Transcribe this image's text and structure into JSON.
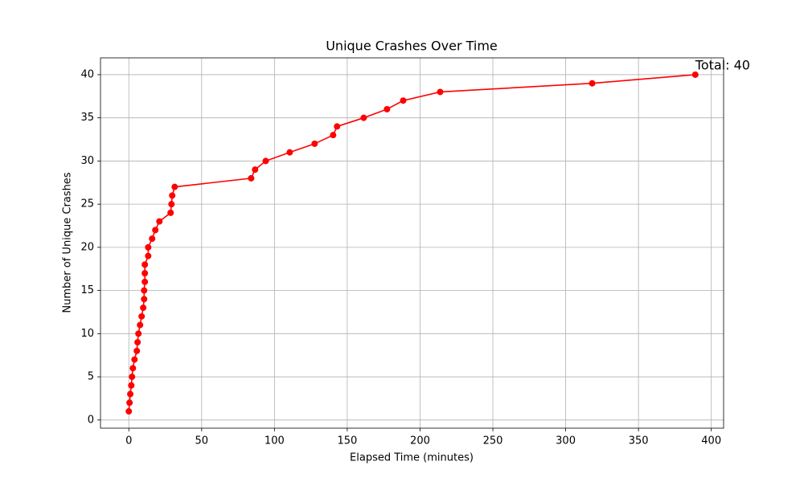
{
  "chart_data": {
    "type": "line",
    "title": "Unique Crashes Over Time",
    "x_label": "Elapsed Time (minutes)",
    "y_label": "Number of Unique Crashes",
    "x": [
      0,
      0.5,
      1,
      1.7,
      2.2,
      2.8,
      3.9,
      5.5,
      6,
      6.6,
      7.7,
      8.8,
      9.9,
      10.5,
      10.5,
      11,
      11,
      11,
      13.3,
      13.3,
      16,
      18.2,
      21,
      28.7,
      29.3,
      29.8,
      31.5,
      84,
      86.7,
      94,
      110.5,
      127.6,
      140.3,
      143,
      161.3,
      177.3,
      188.4,
      213.8,
      318.2,
      389
    ],
    "values": [
      1,
      2,
      3,
      4,
      5,
      6,
      7,
      8,
      9,
      10,
      11,
      12,
      13,
      14,
      15,
      16,
      17,
      18,
      19,
      20,
      21,
      22,
      23,
      24,
      25,
      26,
      27,
      28,
      29,
      30,
      31,
      32,
      33,
      34,
      35,
      36,
      37,
      38,
      39,
      40
    ],
    "color": "#ff0000",
    "annotation": "Total: 40",
    "xlim": [
      -19.45,
      408.45
    ],
    "xticks": [
      0,
      50,
      100,
      150,
      200,
      250,
      300,
      350,
      400
    ],
    "ylim": [
      -0.95,
      41.95
    ],
    "yticks": [
      0,
      5,
      10,
      15,
      20,
      25,
      30,
      35,
      40
    ],
    "grid": true
  }
}
